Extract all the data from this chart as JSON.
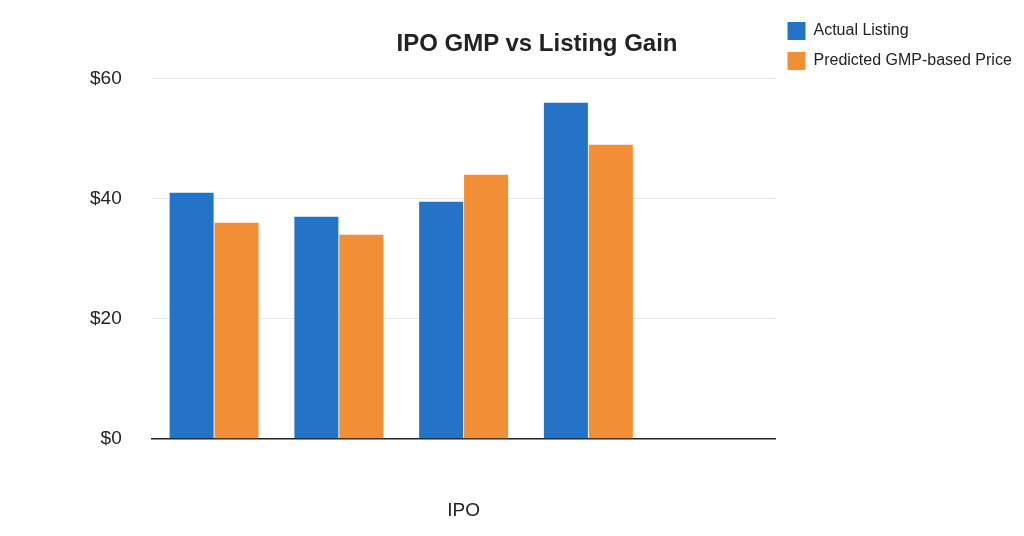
{
  "chart_data": {
    "type": "bar",
    "title": "IPO GMP vs Listing Gain",
    "xlabel": "IPO",
    "categories": [
      null,
      null,
      null,
      null,
      null
    ],
    "series": [
      {
        "name": "Actual Listing",
        "color": "#2374c6",
        "values": [
          41,
          37,
          39.5,
          56,
          null
        ]
      },
      {
        "name": "Predicted GMP-based Price",
        "color": "#f28e35",
        "values": [
          36,
          34,
          44,
          49,
          null
        ]
      }
    ],
    "ylim": [
      0,
      60
    ],
    "yticks": [
      {
        "value": 0,
        "label": "$0"
      },
      {
        "value": 20,
        "label": "$20"
      },
      {
        "value": 40,
        "label": "$40"
      },
      {
        "value": 60,
        "label": "$60"
      }
    ],
    "grid": "y",
    "legend": "top right"
  }
}
